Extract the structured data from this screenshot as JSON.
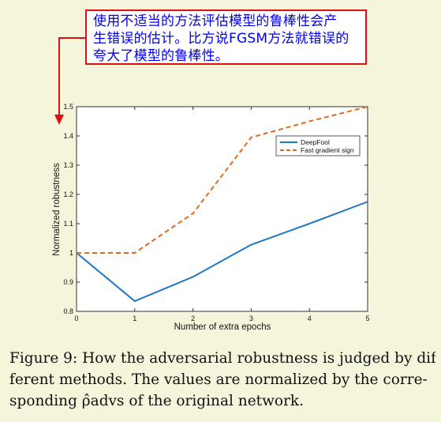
{
  "annotation": {
    "lines": [
      "使用不适当的方法评估模型的鲁棒性会产",
      "生错误的估计。比方说FGSM方法就错误的",
      "夸大了模型的鲁棒性。"
    ],
    "text_color": "#0000ee",
    "border_color": "#e01010",
    "arrow_color": "#e01010"
  },
  "caption": {
    "lines": [
      "Figure 9: How the adversarial robustness is judged by dif-",
      "ferent methods.  The values are normalized by the corre-",
      "sponding ρ̂advs of the original network."
    ]
  },
  "chart_data": {
    "type": "line",
    "title": "",
    "xlabel": "Number of extra epochs",
    "ylabel": "Normalized robustness",
    "xlim": [
      0,
      5
    ],
    "ylim": [
      0.8,
      1.5
    ],
    "xticks": [
      0,
      1,
      2,
      3,
      4,
      5
    ],
    "xtick_labels": [
      "0",
      "1",
      "2",
      "3",
      "4",
      "5"
    ],
    "yticks": [
      0.8,
      0.9,
      1.0,
      1.1,
      1.2,
      1.3,
      1.4,
      1.5
    ],
    "ytick_labels": [
      "0.8",
      "0.9",
      "1",
      "1.1",
      "1.2",
      "1.3",
      "1.4",
      "1.5"
    ],
    "grid": false,
    "legend_position": "upper-right",
    "x": [
      0,
      1,
      2,
      3,
      4,
      5
    ],
    "series": [
      {
        "name": "DeepFool",
        "values": [
          1.0,
          0.835,
          0.918,
          1.028,
          1.1,
          1.175
        ],
        "color": "#1f77c4",
        "style": "solid"
      },
      {
        "name": "Fast gradient sign",
        "values": [
          1.0,
          1.0,
          1.135,
          1.395,
          1.45,
          1.5
        ],
        "color": "#e06a1e",
        "style": "dashed"
      }
    ]
  }
}
